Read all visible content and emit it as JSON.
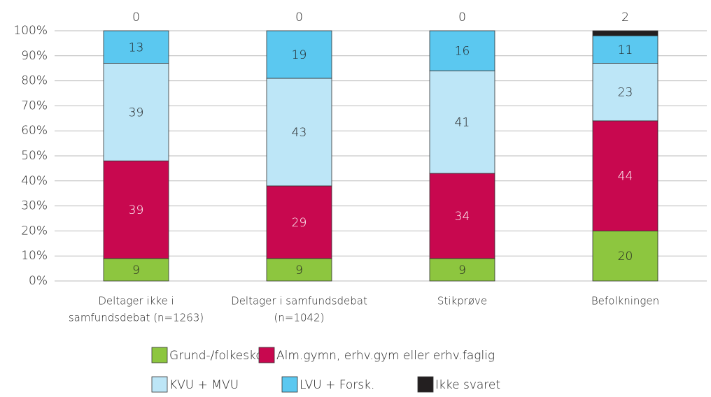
{
  "chart_data": {
    "type": "stacked_bar",
    "categories": [
      [
        "Deltager ikke i",
        "samfundsdebat (n=1263)"
      ],
      [
        "Deltager i samfundsdebat",
        "(n=1042)"
      ],
      [
        "Stikprøve"
      ],
      [
        "Befolkningen"
      ]
    ],
    "series": [
      {
        "name": "Grund-/folkeskole",
        "color": "#8dc63f",
        "values": [
          9,
          9,
          9,
          20
        ]
      },
      {
        "name": "Alm.gymn, erhv.gym eller erhv.faglig",
        "color": "#c8084f",
        "values": [
          39,
          29,
          34,
          44
        ]
      },
      {
        "name": "KVU + MVU",
        "color": "#bde6f7",
        "values": [
          39,
          43,
          41,
          23
        ]
      },
      {
        "name": "LVU + Forsk.",
        "color": "#5bc8f0",
        "values": [
          13,
          19,
          16,
          11
        ]
      },
      {
        "name": "Ikke svaret",
        "color": "#231f20",
        "values": [
          0,
          0,
          0,
          2
        ]
      }
    ],
    "ylim": [
      0,
      100
    ],
    "yticks": [
      {
        "value": 0,
        "label": "0%"
      },
      {
        "value": 10,
        "label": "10%"
      },
      {
        "value": 20,
        "label": "20%"
      },
      {
        "value": 30,
        "label": "30%"
      },
      {
        "value": 40,
        "label": "40%"
      },
      {
        "value": 50,
        "label": "50%"
      },
      {
        "value": 60,
        "label": "60%"
      },
      {
        "value": 70,
        "label": "70%"
      },
      {
        "value": 80,
        "label": "80%"
      },
      {
        "value": 90,
        "label": "90%"
      },
      {
        "value": 100,
        "label": "100%"
      }
    ],
    "grid": true
  }
}
